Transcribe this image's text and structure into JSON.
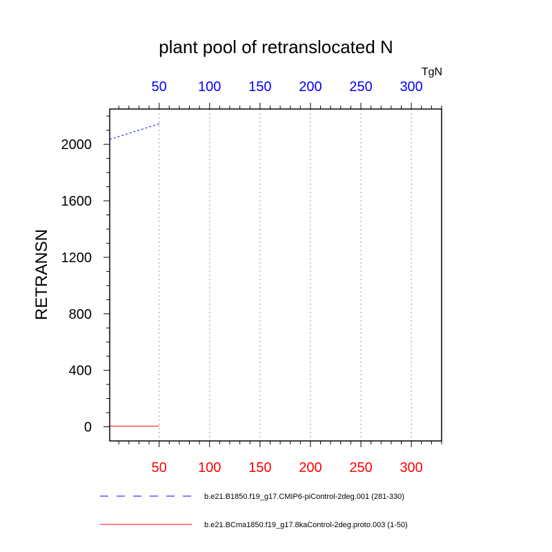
{
  "chart_data": {
    "type": "line",
    "title": "plant pool of retranslocated N",
    "units": "TgN",
    "ylabel": "RETRANSN",
    "ylim": [
      -100,
      2250
    ],
    "yticks": [
      0,
      400,
      800,
      1200,
      1600,
      2000
    ],
    "ytick_labels": [
      "0",
      "400",
      "800",
      "1200",
      "1600",
      "2000"
    ],
    "y_minor_step": 100,
    "xlim": [
      1,
      330
    ],
    "xticks": [
      50,
      100,
      150,
      200,
      250,
      300
    ],
    "bottom_xtick_labels": [
      "50",
      "100",
      "150",
      "200",
      "250",
      "300"
    ],
    "top_xtick_labels": [
      "50",
      "100",
      "150",
      "200",
      "250",
      "300"
    ],
    "x_minor_step": 10,
    "grid": "vertical dotted at major x ticks",
    "bottom_axis_color": "#ff0000",
    "top_axis_color": "#0000ff",
    "series": [
      {
        "name": "b.e21.B1850.f19_g17.CMIP6-piControl-2deg.001 (281-330)",
        "axis": "top",
        "color": "#0000ff",
        "dash": "dashed",
        "x": [
          1,
          50
        ],
        "values": [
          2035,
          2145
        ]
      },
      {
        "name": "b.e21.BCma1850.f19_g17.8kaControl-2deg.proto.003 (1-50)",
        "axis": "bottom",
        "color": "#ff0000",
        "dash": "solid",
        "x": [
          1,
          50
        ],
        "values": [
          5,
          5
        ]
      }
    ]
  }
}
